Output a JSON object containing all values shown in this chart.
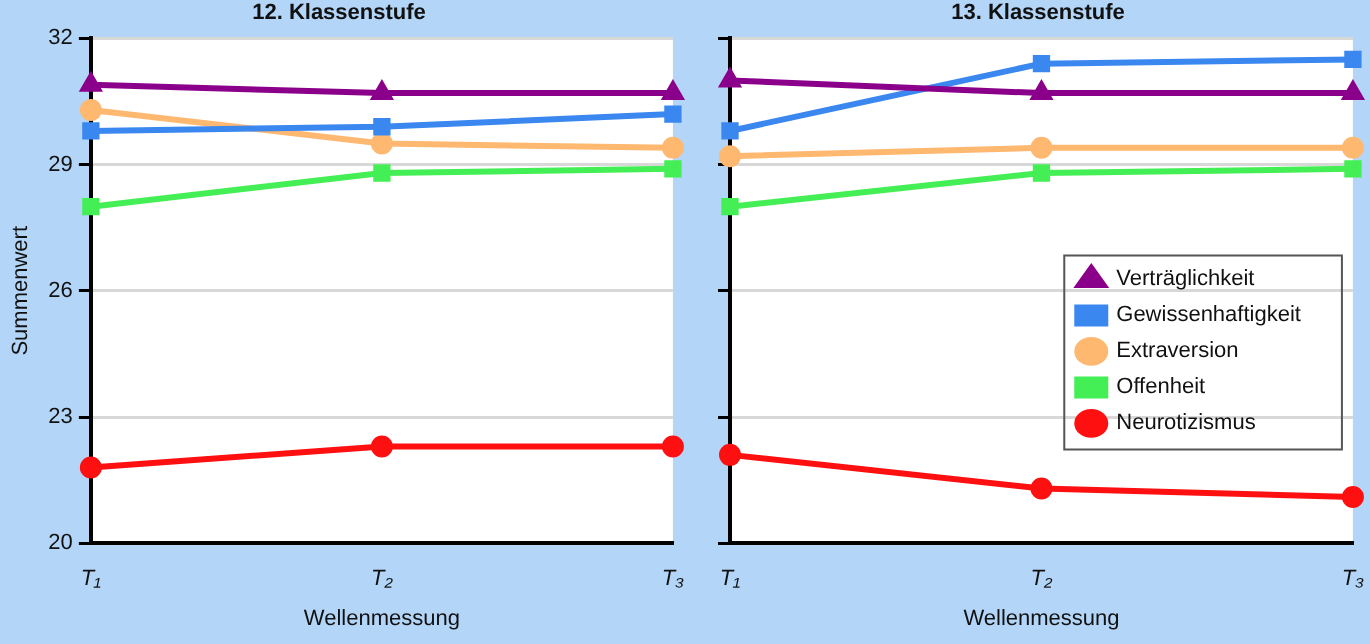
{
  "chart_data": [
    {
      "type": "line",
      "title": "12. Klassenstufe",
      "xlabel": "Wellenmessung",
      "ylabel": "Summenwert",
      "categories": [
        "T₁",
        "T₂",
        "T₃"
      ],
      "ylim": [
        20,
        32
      ],
      "yticks": [
        20,
        23,
        26,
        29,
        32
      ],
      "grid": "y",
      "legend": false,
      "line_style": "solid",
      "series": [
        {
          "color": "#8b008b",
          "marker": "triangle",
          "values": [
            30.9,
            30.7,
            30.7
          ]
        },
        {
          "color": "#3a87f0",
          "marker": "square",
          "values": [
            29.8,
            29.9,
            30.2
          ]
        },
        {
          "color": "#ffb870",
          "marker": "circle",
          "values": [
            30.3,
            29.5,
            29.4
          ]
        },
        {
          "color": "#44ee55",
          "marker": "square",
          "values": [
            28.0,
            28.8,
            28.9
          ]
        },
        {
          "color": "#ff1010",
          "marker": "circle",
          "values": [
            21.8,
            22.3,
            22.3
          ]
        }
      ]
    },
    {
      "type": "line",
      "title": "13. Klassenstufe",
      "xlabel": "Wellenmessung",
      "categories": [
        "T₁",
        "T₂",
        "T₃"
      ],
      "ylim": [
        20,
        32
      ],
      "yticks": [
        20,
        23,
        26,
        29,
        32
      ],
      "grid": "y",
      "legend": "right",
      "tick_labels": "x",
      "line_style": "solid",
      "series": [
        {
          "name": "Verträglichkeit",
          "color": "#8b008b",
          "marker": "triangle",
          "values": [
            31.0,
            30.7,
            30.7
          ]
        },
        {
          "name": "Gewissenhaftigkeit",
          "color": "#3a87f0",
          "marker": "square",
          "values": [
            29.8,
            31.4,
            31.5
          ]
        },
        {
          "name": "Extraversion",
          "color": "#ffb870",
          "marker": "circle",
          "values": [
            29.2,
            29.4,
            29.4
          ]
        },
        {
          "name": "Offenheit",
          "color": "#44ee55",
          "marker": "square",
          "values": [
            28.0,
            28.8,
            28.9
          ]
        },
        {
          "name": "Neurotizismus",
          "color": "#ff1010",
          "marker": "circle",
          "values": [
            22.1,
            21.3,
            21.1
          ]
        }
      ]
    }
  ]
}
